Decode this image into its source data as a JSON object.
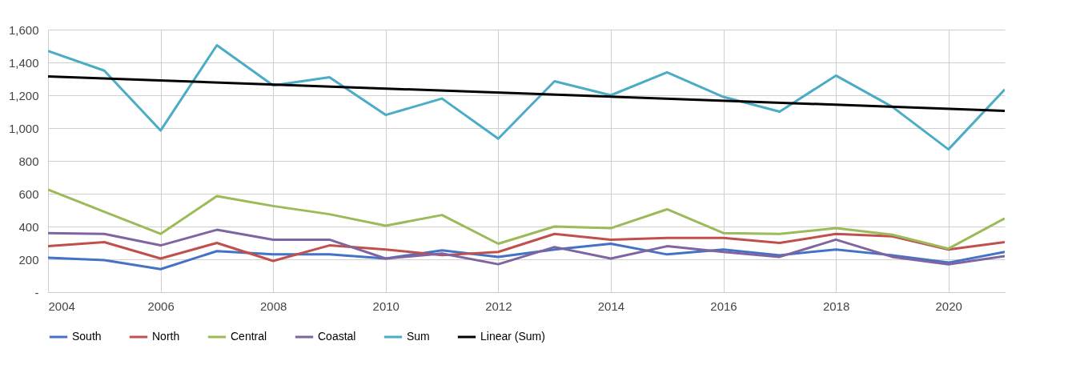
{
  "chart_data": {
    "type": "line",
    "x": [
      2004,
      2005,
      2006,
      2007,
      2008,
      2009,
      2010,
      2011,
      2012,
      2013,
      2014,
      2015,
      2016,
      2017,
      2018,
      2019,
      2020,
      2021
    ],
    "series": [
      {
        "name": "South",
        "color": "#4472c4",
        "values": [
          210,
          195,
          140,
          250,
          230,
          230,
          205,
          255,
          215,
          260,
          295,
          230,
          260,
          225,
          260,
          225,
          180,
          245
        ]
      },
      {
        "name": "North",
        "color": "#c0504d",
        "values": [
          280,
          305,
          205,
          300,
          190,
          285,
          260,
          225,
          245,
          355,
          320,
          330,
          330,
          300,
          355,
          340,
          260,
          305
        ]
      },
      {
        "name": "Central",
        "color": "#9bbb59",
        "values": [
          625,
          490,
          355,
          585,
          525,
          475,
          405,
          470,
          295,
          400,
          390,
          505,
          360,
          355,
          390,
          350,
          265,
          450
        ]
      },
      {
        "name": "Coastal",
        "color": "#8064a2",
        "values": [
          360,
          355,
          285,
          380,
          320,
          320,
          205,
          235,
          170,
          275,
          205,
          280,
          245,
          215,
          320,
          215,
          170,
          220
        ]
      },
      {
        "name": "Sum",
        "color": "#4bacc6",
        "values": [
          1470,
          1350,
          985,
          1505,
          1260,
          1310,
          1080,
          1180,
          935,
          1285,
          1200,
          1340,
          1190,
          1100,
          1320,
          1130,
          870,
          1235
        ]
      },
      {
        "name": "Linear (Sum)",
        "color": "#000000",
        "x": [
          2004,
          2021
        ],
        "values": [
          1315,
          1105
        ]
      }
    ],
    "xlim": [
      2004,
      2021
    ],
    "xticks": [
      2004,
      2006,
      2008,
      2010,
      2012,
      2014,
      2016,
      2018,
      2020
    ],
    "ylim": [
      0,
      1600
    ],
    "yticks": [
      {
        "value": 0,
        "label": "-"
      },
      {
        "value": 200,
        "label": "200"
      },
      {
        "value": 400,
        "label": "400"
      },
      {
        "value": 600,
        "label": "600"
      },
      {
        "value": 800,
        "label": "800"
      },
      {
        "value": 1000,
        "label": "1,000"
      },
      {
        "value": 1200,
        "label": "1,200"
      },
      {
        "value": 1400,
        "label": "1,400"
      },
      {
        "value": 1600,
        "label": "1,600"
      }
    ],
    "grid": true,
    "legend": "bottom"
  }
}
